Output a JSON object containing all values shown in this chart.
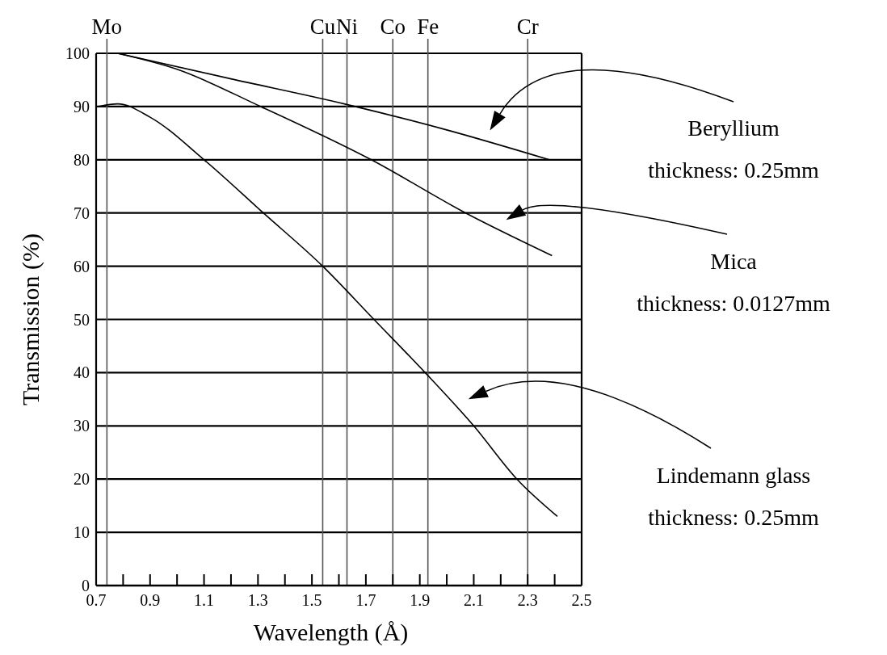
{
  "chart_data": {
    "type": "line",
    "xlabel": "Wavelength (Å)",
    "ylabel": "Transmission (%)",
    "xlim": [
      0.7,
      2.5
    ],
    "ylim": [
      0,
      100
    ],
    "xticks": [
      0.7,
      {
        "value": 0.8,
        "label": null
      },
      0.9,
      {
        "value": 1.0,
        "label": null
      },
      1.1,
      {
        "value": 1.2,
        "label": null
      },
      1.3,
      {
        "value": 1.4,
        "label": null
      },
      1.5,
      {
        "value": 1.6,
        "label": null
      },
      1.7,
      {
        "value": 1.8,
        "label": null
      },
      1.9,
      {
        "value": 2.0,
        "label": null
      },
      2.1,
      {
        "value": 2.2,
        "label": null
      },
      2.3,
      {
        "value": 2.4,
        "label": null
      },
      2.5
    ],
    "yticks": [
      0,
      10,
      20,
      30,
      40,
      50,
      60,
      70,
      80,
      90,
      100
    ],
    "grid": "y",
    "marker": "none",
    "line_style": "solid",
    "series": [
      {
        "name": "Beryllium",
        "color": "#000000",
        "x": [
          0.78,
          1.2,
          1.62,
          2.0,
          2.38
        ],
        "values": [
          100,
          95.2,
          90.5,
          85.6,
          80
        ]
      },
      {
        "name": "Mica",
        "color": "#000000",
        "x": [
          0.78,
          1.0,
          1.31,
          1.72,
          2.07,
          2.39
        ],
        "values": [
          100,
          97,
          90,
          80,
          70,
          62
        ]
      },
      {
        "name": "Lindemann glass",
        "color": "#000000",
        "x": [
          0.71,
          0.78,
          0.9,
          1.1,
          1.32,
          1.54,
          1.73,
          1.92,
          2.1,
          2.26,
          2.41
        ],
        "values": [
          90,
          90.5,
          88,
          80,
          70,
          60,
          50,
          40,
          30,
          20,
          13
        ]
      }
    ],
    "annotations": [
      "thickness: 0.25mm",
      "thickness: 0.0127mm",
      "thickness: 0.25mm"
    ],
    "ref_lines": [
      {
        "axis": "x",
        "value": 0.74,
        "label": "Mo",
        "color": "#555555"
      },
      {
        "axis": "x",
        "value": 1.54,
        "label": "Cu",
        "color": "#555555"
      },
      {
        "axis": "x",
        "value": 1.63,
        "label": "Ni",
        "color": "#555555"
      },
      {
        "axis": "x",
        "value": 1.8,
        "label": "Co",
        "color": "#555555"
      },
      {
        "axis": "x",
        "value": 1.93,
        "label": "Fe",
        "color": "#555555"
      },
      {
        "axis": "x",
        "value": 2.3,
        "label": "Cr",
        "color": "#555555"
      }
    ]
  }
}
